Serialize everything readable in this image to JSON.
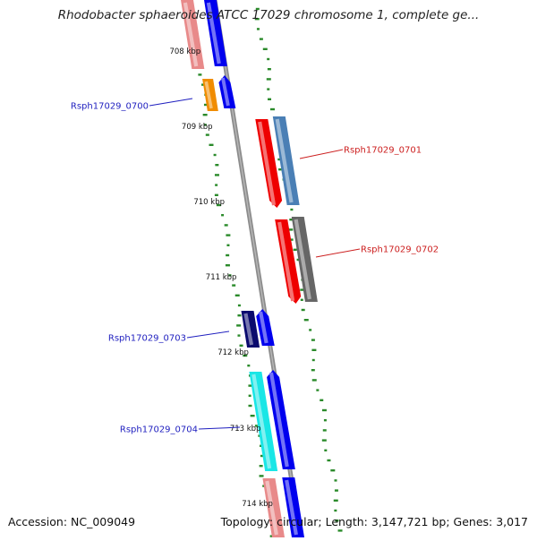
{
  "title": "Rhodobacter sphaeroides ATCC 17029 chromosome 1, complete ge...",
  "footer": {
    "accession": "Accession: NC_009049",
    "topology": "Topology: circular; Length: 3,147,721 bp; Genes: 3,017"
  },
  "ticks": [
    "708 kbp",
    "709 kbp",
    "710 kbp",
    "711 kbp",
    "712 kbp",
    "713 kbp",
    "714 kbp"
  ],
  "genes": [
    {
      "id": "Rsph17029_0700",
      "color": "#1f1fbf"
    },
    {
      "id": "Rsph17029_0701",
      "color": "#cc1f1f"
    },
    {
      "id": "Rsph17029_0702",
      "color": "#cc1f1f"
    },
    {
      "id": "Rsph17029_0703",
      "color": "#1f1fbf"
    },
    {
      "id": "Rsph17029_0704",
      "color": "#1f1fbf"
    }
  ],
  "colors": {
    "backbone": "#8c8c8c",
    "gc_dots": "#2a8a2a",
    "salmon": "#e88a8a",
    "blue": "#0000ee",
    "orange": "#f08c00",
    "red": "#ee0000",
    "steelblue": "#4a7fb5",
    "gray": "#666666",
    "navy": "#0a0a6e",
    "cyan": "#19e6e6"
  }
}
